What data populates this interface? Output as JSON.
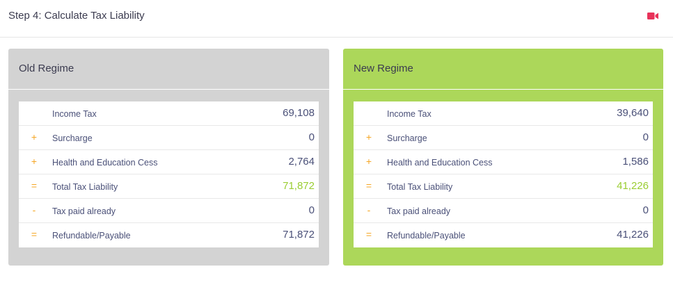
{
  "header": {
    "title": "Step 4: Calculate Tax Liability",
    "video_icon": "video-camera-icon",
    "icon_color": "#e8335a"
  },
  "old_regime": {
    "title": "Old Regime",
    "bg_color": "#d3d3d3",
    "rows": [
      {
        "op": "",
        "label": "Income Tax",
        "value": "69,108"
      },
      {
        "op": "+",
        "label": "Surcharge",
        "value": "0"
      },
      {
        "op": "+",
        "label": "Health and Education Cess",
        "value": "2,764"
      },
      {
        "op": "=",
        "label": "Total Tax Liability",
        "value": "71,872"
      },
      {
        "op": "-",
        "label": "Tax paid already",
        "value": "0"
      },
      {
        "op": "=",
        "label": "Refundable/Payable",
        "value": "71,872"
      }
    ]
  },
  "new_regime": {
    "title": "New Regime",
    "bg_color": "#acd75a",
    "rows": [
      {
        "op": "",
        "label": "Income Tax",
        "value": "39,640"
      },
      {
        "op": "+",
        "label": "Surcharge",
        "value": "0"
      },
      {
        "op": "+",
        "label": "Health and Education Cess",
        "value": "1,586"
      },
      {
        "op": "=",
        "label": "Total Tax Liability",
        "value": "41,226"
      },
      {
        "op": "-",
        "label": "Tax paid already",
        "value": "0"
      },
      {
        "op": "=",
        "label": "Refundable/Payable",
        "value": "41,226"
      }
    ]
  },
  "colors": {
    "operator": "#f5a623",
    "total_value": "#9acd32",
    "text": "#4a5078"
  }
}
